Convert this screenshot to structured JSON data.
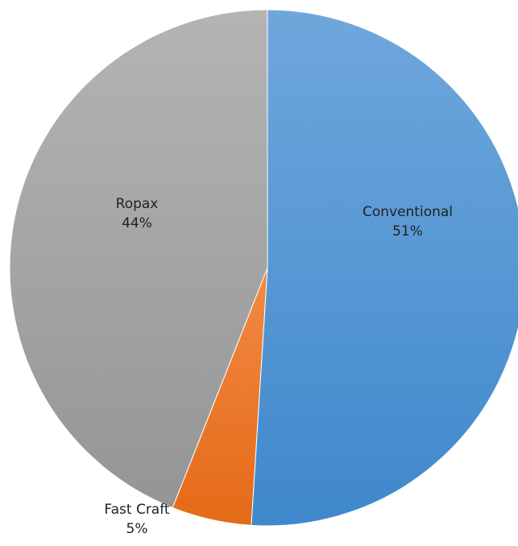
{
  "chart_data": {
    "type": "pie",
    "title": "",
    "slices": [
      {
        "label": "Conventional",
        "value": 51,
        "value_label": "51%",
        "color": "#5B9BD5"
      },
      {
        "label": "Fast Craft",
        "value": 5,
        "value_label": "5%",
        "color": "#ED7D31"
      },
      {
        "label": "Ropax",
        "value": 44,
        "value_label": "44%",
        "color": "#A5A5A5"
      }
    ],
    "start_angle": "12 o'clock",
    "direction": "clockwise",
    "legend": "none"
  }
}
